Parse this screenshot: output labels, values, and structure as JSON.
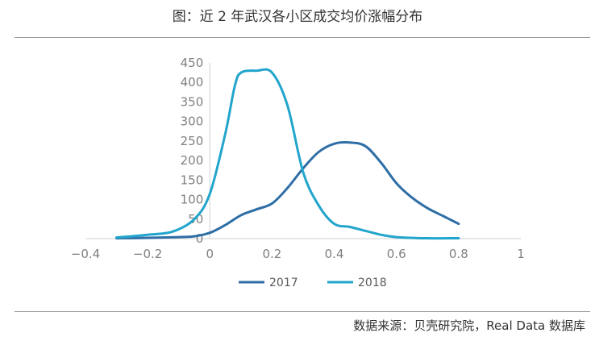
{
  "title": "图：近 2 年武汉各小区成交均价涨幅分布",
  "source": "数据来源：贝壳研究院，Real Data 数据库",
  "chart_data": {
    "type": "line",
    "title": "图：近 2 年武汉各小区成交均价涨幅分布",
    "xlabel": "",
    "ylabel": "",
    "xlim": [
      -0.4,
      1
    ],
    "ylim": [
      0,
      450
    ],
    "xticks": [
      "−0.4",
      "−0.2",
      "0",
      "0.2",
      "0.4",
      "0.6",
      "0.8",
      "1"
    ],
    "xtick_values": [
      -0.4,
      -0.2,
      0,
      0.2,
      0.4,
      0.6,
      0.8,
      1
    ],
    "yticks": [
      "0",
      "50",
      "100",
      "150",
      "200",
      "250",
      "300",
      "350",
      "400",
      "450"
    ],
    "ytick_values": [
      0,
      50,
      100,
      150,
      200,
      250,
      300,
      350,
      400,
      450
    ],
    "grid": false,
    "legend_position": "bottom",
    "series": [
      {
        "name": "2017",
        "color": "#2e6ea6",
        "points": [
          [
            -0.3,
            1
          ],
          [
            -0.2,
            2
          ],
          [
            -0.1,
            4
          ],
          [
            -0.05,
            6
          ],
          [
            0,
            15
          ],
          [
            0.05,
            35
          ],
          [
            0.1,
            60
          ],
          [
            0.15,
            75
          ],
          [
            0.2,
            90
          ],
          [
            0.25,
            130
          ],
          [
            0.3,
            180
          ],
          [
            0.35,
            222
          ],
          [
            0.4,
            243
          ],
          [
            0.45,
            246
          ],
          [
            0.5,
            237
          ],
          [
            0.55,
            195
          ],
          [
            0.6,
            142
          ],
          [
            0.65,
            105
          ],
          [
            0.7,
            78
          ],
          [
            0.75,
            58
          ],
          [
            0.8,
            38
          ]
        ]
      },
      {
        "name": "2018",
        "color": "#22a5cc",
        "points": [
          [
            -0.3,
            3
          ],
          [
            -0.2,
            10
          ],
          [
            -0.12,
            18
          ],
          [
            -0.05,
            50
          ],
          [
            0,
            115
          ],
          [
            0.05,
            270
          ],
          [
            0.08,
            390
          ],
          [
            0.1,
            425
          ],
          [
            0.15,
            430
          ],
          [
            0.2,
            425
          ],
          [
            0.25,
            340
          ],
          [
            0.3,
            170
          ],
          [
            0.35,
            85
          ],
          [
            0.4,
            38
          ],
          [
            0.45,
            30
          ],
          [
            0.5,
            20
          ],
          [
            0.55,
            10
          ],
          [
            0.6,
            4
          ],
          [
            0.7,
            1
          ],
          [
            0.8,
            1
          ]
        ]
      }
    ]
  }
}
